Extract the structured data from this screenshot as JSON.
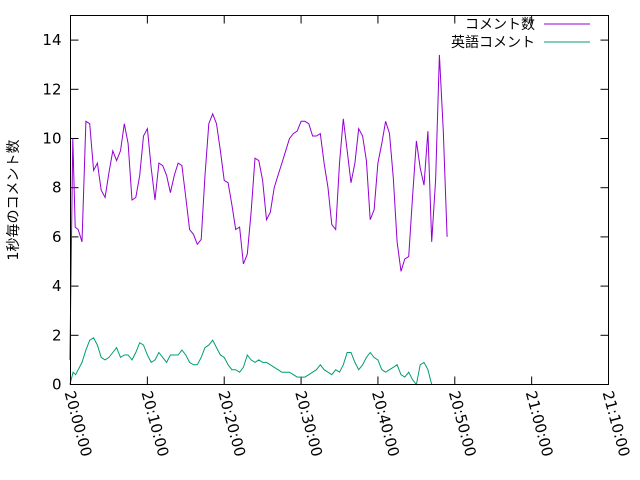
{
  "chart_data": {
    "type": "line",
    "title": "",
    "xlabel": "",
    "ylabel": "1秒毎のコメント数",
    "xlim": [
      "20:00:00",
      "21:10:00"
    ],
    "ylim": [
      0,
      15
    ],
    "x_ticks": [
      "20:00:00",
      "20:10:00",
      "20:20:00",
      "20:30:00",
      "20:40:00",
      "20:50:00",
      "21:00:00",
      "21:10:00"
    ],
    "y_ticks": [
      0,
      2,
      4,
      6,
      8,
      10,
      12,
      14
    ],
    "grid": false,
    "legend_position": "top-right",
    "series": [
      {
        "name": "コメント数",
        "color": "#9400d3",
        "points": [
          [
            "19:59:55",
            1.0
          ],
          [
            "20:00:18",
            10.0
          ],
          [
            "20:00:37",
            6.4
          ],
          [
            "20:01:00",
            6.3
          ],
          [
            "20:01:30",
            5.8
          ],
          [
            "20:02:00",
            10.7
          ],
          [
            "20:02:30",
            10.6
          ],
          [
            "20:03:00",
            8.7
          ],
          [
            "20:03:30",
            9.0
          ],
          [
            "20:04:00",
            7.9
          ],
          [
            "20:04:30",
            7.6
          ],
          [
            "20:05:00",
            8.6
          ],
          [
            "20:05:30",
            9.5
          ],
          [
            "20:06:00",
            9.1
          ],
          [
            "20:06:30",
            9.5
          ],
          [
            "20:07:00",
            10.6
          ],
          [
            "20:07:30",
            9.8
          ],
          [
            "20:08:00",
            7.5
          ],
          [
            "20:08:30",
            7.6
          ],
          [
            "20:09:00",
            8.5
          ],
          [
            "20:09:30",
            10.1
          ],
          [
            "20:10:00",
            10.4
          ],
          [
            "20:10:30",
            8.8
          ],
          [
            "20:11:00",
            7.5
          ],
          [
            "20:11:30",
            9.0
          ],
          [
            "20:12:00",
            8.9
          ],
          [
            "20:12:30",
            8.5
          ],
          [
            "20:13:00",
            7.8
          ],
          [
            "20:13:30",
            8.5
          ],
          [
            "20:14:00",
            9.0
          ],
          [
            "20:14:30",
            8.9
          ],
          [
            "20:15:00",
            7.6
          ],
          [
            "20:15:30",
            6.3
          ],
          [
            "20:16:00",
            6.1
          ],
          [
            "20:16:30",
            5.7
          ],
          [
            "20:17:00",
            5.9
          ],
          [
            "20:17:30",
            8.5
          ],
          [
            "20:18:00",
            10.6
          ],
          [
            "20:18:30",
            11.0
          ],
          [
            "20:19:00",
            10.6
          ],
          [
            "20:19:30",
            9.5
          ],
          [
            "20:20:00",
            8.3
          ],
          [
            "20:20:30",
            8.2
          ],
          [
            "20:21:00",
            7.3
          ],
          [
            "20:21:30",
            6.3
          ],
          [
            "20:22:00",
            6.4
          ],
          [
            "20:22:30",
            4.9
          ],
          [
            "20:23:00",
            5.3
          ],
          [
            "20:23:30",
            7.0
          ],
          [
            "20:24:00",
            9.2
          ],
          [
            "20:24:30",
            9.1
          ],
          [
            "20:25:00",
            8.3
          ],
          [
            "20:25:30",
            6.7
          ],
          [
            "20:26:00",
            7.0
          ],
          [
            "20:26:30",
            8.0
          ],
          [
            "20:27:00",
            8.5
          ],
          [
            "20:27:30",
            9.0
          ],
          [
            "20:28:00",
            9.5
          ],
          [
            "20:28:30",
            10.0
          ],
          [
            "20:29:00",
            10.2
          ],
          [
            "20:29:30",
            10.3
          ],
          [
            "20:30:00",
            10.7
          ],
          [
            "20:30:30",
            10.7
          ],
          [
            "20:31:00",
            10.6
          ],
          [
            "20:31:30",
            10.1
          ],
          [
            "20:32:00",
            10.1
          ],
          [
            "20:32:30",
            10.2
          ],
          [
            "20:33:00",
            9.0
          ],
          [
            "20:33:30",
            8.0
          ],
          [
            "20:34:00",
            6.5
          ],
          [
            "20:34:30",
            6.3
          ],
          [
            "20:35:00",
            9.0
          ],
          [
            "20:35:30",
            10.8
          ],
          [
            "20:36:00",
            9.5
          ],
          [
            "20:36:30",
            8.2
          ],
          [
            "20:37:00",
            9.0
          ],
          [
            "20:37:30",
            10.4
          ],
          [
            "20:38:00",
            10.1
          ],
          [
            "20:38:30",
            9.1
          ],
          [
            "20:39:00",
            6.7
          ],
          [
            "20:39:30",
            7.1
          ],
          [
            "20:40:00",
            9.0
          ],
          [
            "20:40:30",
            9.8
          ],
          [
            "20:41:00",
            10.7
          ],
          [
            "20:41:30",
            10.2
          ],
          [
            "20:42:00",
            8.4
          ],
          [
            "20:42:30",
            5.8
          ],
          [
            "20:43:00",
            4.6
          ],
          [
            "20:43:30",
            5.1
          ],
          [
            "20:44:00",
            5.2
          ],
          [
            "20:44:30",
            7.6
          ],
          [
            "20:45:00",
            9.9
          ],
          [
            "20:45:30",
            8.8
          ],
          [
            "20:46:00",
            8.1
          ],
          [
            "20:46:30",
            10.3
          ],
          [
            "20:47:00",
            5.8
          ],
          [
            "20:47:30",
            8.3
          ],
          [
            "20:48:00",
            13.4
          ],
          [
            "20:48:30",
            10.3
          ],
          [
            "20:49:00",
            6.0
          ]
        ]
      },
      {
        "name": "英語コメント",
        "color": "#009e73",
        "points": [
          [
            "19:59:55",
            0.0
          ],
          [
            "20:00:20",
            0.5
          ],
          [
            "20:00:40",
            0.4
          ],
          [
            "20:01:00",
            0.6
          ],
          [
            "20:01:30",
            0.9
          ],
          [
            "20:02:00",
            1.4
          ],
          [
            "20:02:30",
            1.8
          ],
          [
            "20:03:00",
            1.9
          ],
          [
            "20:03:30",
            1.6
          ],
          [
            "20:04:00",
            1.1
          ],
          [
            "20:04:30",
            1.0
          ],
          [
            "20:05:00",
            1.1
          ],
          [
            "20:05:30",
            1.3
          ],
          [
            "20:06:00",
            1.5
          ],
          [
            "20:06:30",
            1.1
          ],
          [
            "20:07:00",
            1.2
          ],
          [
            "20:07:30",
            1.2
          ],
          [
            "20:08:00",
            1.0
          ],
          [
            "20:08:30",
            1.3
          ],
          [
            "20:09:00",
            1.7
          ],
          [
            "20:09:30",
            1.6
          ],
          [
            "20:10:00",
            1.2
          ],
          [
            "20:10:30",
            0.9
          ],
          [
            "20:11:00",
            1.0
          ],
          [
            "20:11:30",
            1.3
          ],
          [
            "20:12:00",
            1.1
          ],
          [
            "20:12:30",
            0.9
          ],
          [
            "20:13:00",
            1.2
          ],
          [
            "20:13:30",
            1.2
          ],
          [
            "20:14:00",
            1.2
          ],
          [
            "20:14:30",
            1.4
          ],
          [
            "20:15:00",
            1.2
          ],
          [
            "20:15:30",
            0.9
          ],
          [
            "20:16:00",
            0.8
          ],
          [
            "20:16:30",
            0.8
          ],
          [
            "20:17:00",
            1.1
          ],
          [
            "20:17:30",
            1.5
          ],
          [
            "20:18:00",
            1.6
          ],
          [
            "20:18:30",
            1.8
          ],
          [
            "20:19:00",
            1.5
          ],
          [
            "20:19:30",
            1.2
          ],
          [
            "20:20:00",
            1.1
          ],
          [
            "20:20:30",
            0.8
          ],
          [
            "20:21:00",
            0.6
          ],
          [
            "20:21:30",
            0.6
          ],
          [
            "20:22:00",
            0.5
          ],
          [
            "20:22:30",
            0.7
          ],
          [
            "20:23:00",
            1.2
          ],
          [
            "20:23:30",
            1.0
          ],
          [
            "20:24:00",
            0.9
          ],
          [
            "20:24:30",
            1.0
          ],
          [
            "20:25:00",
            0.9
          ],
          [
            "20:25:30",
            0.9
          ],
          [
            "20:26:00",
            0.8
          ],
          [
            "20:26:30",
            0.7
          ],
          [
            "20:27:00",
            0.6
          ],
          [
            "20:27:30",
            0.5
          ],
          [
            "20:28:00",
            0.5
          ],
          [
            "20:28:30",
            0.5
          ],
          [
            "20:29:00",
            0.4
          ],
          [
            "20:29:30",
            0.3
          ],
          [
            "20:30:00",
            0.3
          ],
          [
            "20:30:30",
            0.3
          ],
          [
            "20:31:00",
            0.4
          ],
          [
            "20:31:30",
            0.5
          ],
          [
            "20:32:00",
            0.6
          ],
          [
            "20:32:30",
            0.8
          ],
          [
            "20:33:00",
            0.6
          ],
          [
            "20:33:30",
            0.5
          ],
          [
            "20:34:00",
            0.4
          ],
          [
            "20:34:30",
            0.6
          ],
          [
            "20:35:00",
            0.5
          ],
          [
            "20:35:30",
            0.8
          ],
          [
            "20:36:00",
            1.3
          ],
          [
            "20:36:30",
            1.3
          ],
          [
            "20:37:00",
            0.9
          ],
          [
            "20:37:30",
            0.6
          ],
          [
            "20:38:00",
            0.8
          ],
          [
            "20:38:30",
            1.1
          ],
          [
            "20:39:00",
            1.3
          ],
          [
            "20:39:30",
            1.1
          ],
          [
            "20:40:00",
            1.0
          ],
          [
            "20:40:30",
            0.6
          ],
          [
            "20:41:00",
            0.5
          ],
          [
            "20:41:30",
            0.6
          ],
          [
            "20:42:00",
            0.7
          ],
          [
            "20:42:30",
            0.8
          ],
          [
            "20:43:00",
            0.4
          ],
          [
            "20:43:30",
            0.3
          ],
          [
            "20:44:00",
            0.5
          ],
          [
            "20:44:30",
            0.2
          ],
          [
            "20:45:00",
            0.0
          ],
          [
            "20:45:30",
            0.8
          ],
          [
            "20:46:00",
            0.9
          ],
          [
            "20:46:30",
            0.6
          ],
          [
            "20:47:00",
            0.0
          ]
        ]
      }
    ]
  }
}
